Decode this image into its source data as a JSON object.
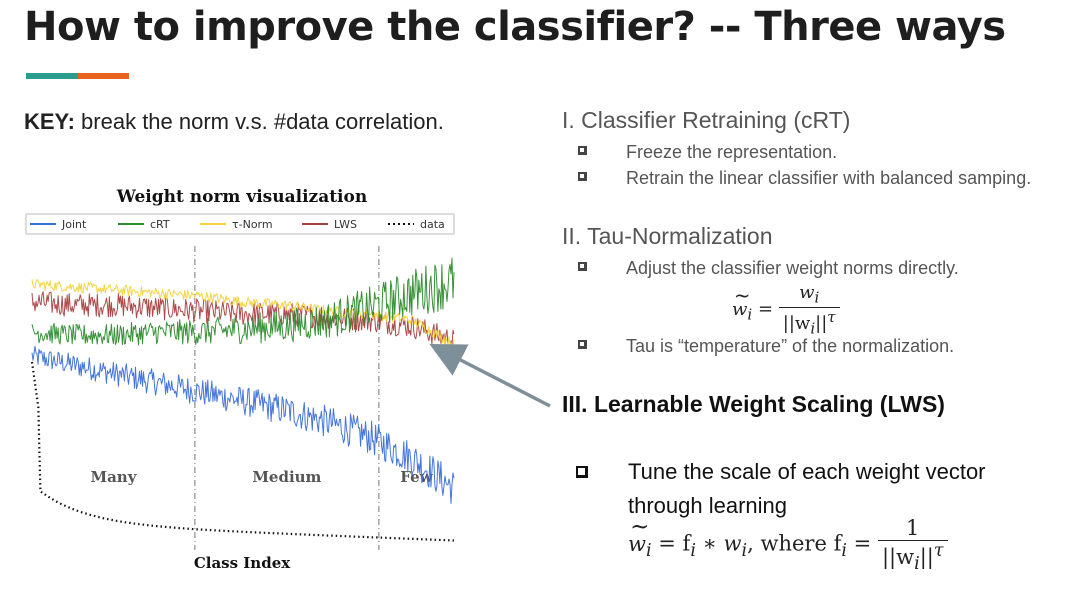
{
  "slide": {
    "title": "How to improve the classifier?  -- Three ways",
    "key_label": "KEY:",
    "key_text": " break the norm v.s. #data correlation."
  },
  "sections": [
    {
      "heading": "I.  Classifier Retraining (cRT)",
      "bullets": [
        "Freeze the representation.",
        "Retrain the linear classifier with balanced samping."
      ]
    },
    {
      "heading": "II.  Tau-Normalization",
      "bullets": [
        "Adjust the classifier weight norms directly.",
        "Tau is “temperature” of the normalization."
      ]
    },
    {
      "heading": "III.  Learnable Weight Scaling (LWS)",
      "bullets": [
        "Tune the scale of each weight vector through learning"
      ]
    }
  ],
  "formulas": {
    "tau_norm": {
      "lhs": "w",
      "lhs_sub": "i",
      "eq": "=",
      "num": "w",
      "num_sub": "i",
      "den": "||w",
      "den_sub": "i",
      "den_tail": "||",
      "sup": "τ"
    },
    "lws": {
      "lhs": "w",
      "lhs_sub": "i",
      "mid": "= f",
      "mid_sub": "i",
      "star": " ∗ w",
      "star_sub": "i",
      "where": ", where f",
      "where_sub": "i",
      "eq2": " =",
      "num": "1",
      "den": "||w",
      "den_sub": "i",
      "den_tail": "||",
      "sup": "τ"
    }
  },
  "chart_data": {
    "type": "line",
    "title": "Weight norm visualization",
    "xlabel": "Class Index",
    "ylabel": "",
    "legend_position": "top",
    "regions": [
      "Many",
      "Medium",
      "Few"
    ],
    "region_boundaries": [
      0.386,
      0.822
    ],
    "x": [
      0,
      0.1,
      0.2,
      0.3,
      0.4,
      0.5,
      0.6,
      0.7,
      0.8,
      0.9,
      1.0
    ],
    "series": [
      {
        "name": "Joint",
        "color": "#3b6fd8",
        "values": [
          0.62,
          0.59,
          0.56,
          0.53,
          0.5,
          0.47,
          0.44,
          0.4,
          0.35,
          0.28,
          0.18
        ],
        "noise": 0.035
      },
      {
        "name": "cRT",
        "color": "#2e8b2e",
        "values": [
          0.7,
          0.69,
          0.69,
          0.7,
          0.7,
          0.71,
          0.72,
          0.74,
          0.78,
          0.83,
          0.87
        ],
        "noise": 0.035
      },
      {
        "name": "τ-Norm",
        "color": "#f2d43a",
        "values": [
          0.86,
          0.85,
          0.84,
          0.83,
          0.82,
          0.8,
          0.79,
          0.77,
          0.76,
          0.74,
          0.66
        ],
        "noise": 0.018
      },
      {
        "name": "LWS",
        "color": "#a84040",
        "values": [
          0.8,
          0.79,
          0.79,
          0.78,
          0.77,
          0.76,
          0.76,
          0.75,
          0.74,
          0.72,
          0.67
        ],
        "noise": 0.04
      },
      {
        "name": "data",
        "color": "#111111",
        "style": "dotted",
        "values": [
          0.6,
          0.1,
          0.05,
          0.03,
          0.02,
          0.015,
          0.012,
          0.01,
          0.008,
          0.006,
          0.005
        ],
        "noise": 0
      }
    ]
  }
}
